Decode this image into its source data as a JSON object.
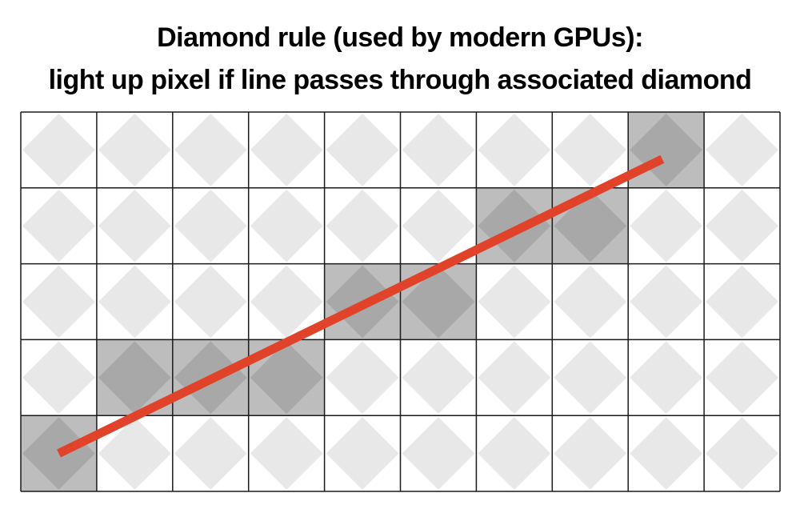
{
  "title": {
    "line1": "Diamond rule (used by modern GPUs):",
    "line2": "light up pixel if line passes through associated diamond"
  },
  "grid": {
    "columns": 10,
    "rows": 5
  },
  "line": {
    "start": {
      "col": 0.5,
      "row": 4.5
    },
    "end": {
      "col": 8.45,
      "row": 0.62
    }
  },
  "lit_pixels": [
    {
      "col": 0,
      "row": 4
    },
    {
      "col": 1,
      "row": 3
    },
    {
      "col": 2,
      "row": 3
    },
    {
      "col": 3,
      "row": 3
    },
    {
      "col": 4,
      "row": 2
    },
    {
      "col": 5,
      "row": 2
    },
    {
      "col": 6,
      "row": 1
    },
    {
      "col": 7,
      "row": 1
    },
    {
      "col": 8,
      "row": 0
    }
  ],
  "colors": {
    "line": "#e0432a",
    "diamond": "#e8e8e8",
    "lit_cell": "#bdbdbd",
    "lit_diamond": "#a8a8a8",
    "grid": "#1a1a1a",
    "background": "#ffffff"
  }
}
